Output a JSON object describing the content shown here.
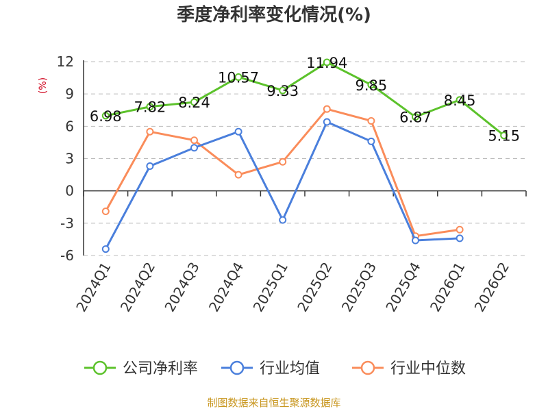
{
  "chart_data": {
    "type": "line",
    "title": "季度净利率变化情况(%)",
    "ylabel": "(%)",
    "xlabel": "",
    "categories": [
      "2024Q1",
      "2024Q2",
      "2024Q3",
      "2024Q4",
      "2025Q1",
      "2025Q2",
      "2025Q3",
      "2025Q4",
      "2026Q1",
      "2026Q2"
    ],
    "ylim": [
      -6,
      12
    ],
    "yticks": [
      12,
      9,
      6,
      3,
      0,
      -3,
      -6
    ],
    "ytick_labels": [
      "12",
      "9",
      "6",
      "3",
      "0",
      "-3",
      "-6"
    ],
    "grid": true,
    "legend_position": "bottom",
    "series": [
      {
        "name": "公司净利率",
        "color": "#5cc22b",
        "values": [
          6.98,
          7.82,
          8.24,
          10.57,
          9.33,
          11.94,
          9.85,
          6.87,
          8.45,
          5.15
        ],
        "labels": [
          "6.98",
          "7.82",
          "8.24",
          "10.57",
          "9.33",
          "11.94",
          "9.85",
          "6.87",
          "8.45",
          "5.15"
        ]
      },
      {
        "name": "行业均值",
        "color": "#4a7fdc",
        "values": [
          -5.4,
          2.3,
          4.0,
          5.5,
          -2.7,
          6.4,
          4.6,
          -4.6,
          -4.4,
          null
        ]
      },
      {
        "name": "行业中位数",
        "color": "#fa8c5a",
        "values": [
          -1.9,
          5.5,
          4.7,
          1.5,
          2.7,
          7.6,
          6.5,
          -4.2,
          -3.6,
          null
        ]
      }
    ]
  },
  "source": "制图数据来自恒生聚源数据库"
}
